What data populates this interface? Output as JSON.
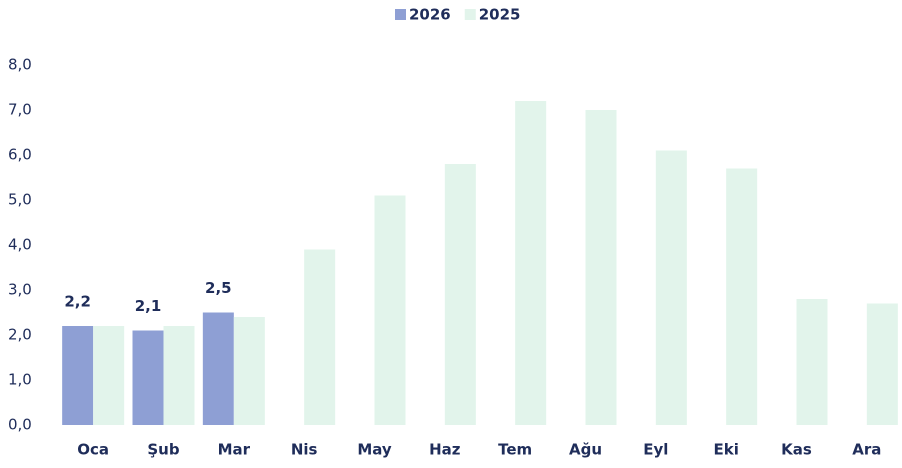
{
  "chart_data": {
    "type": "bar",
    "categories": [
      "Oca",
      "Şub",
      "Mar",
      "Nis",
      "May",
      "Haz",
      "Tem",
      "Ağu",
      "Eyl",
      "Eki",
      "Kas",
      "Ara"
    ],
    "series": [
      {
        "name": "2026",
        "color": "#8e9fd4",
        "values": [
          2.2,
          2.1,
          2.5,
          null,
          null,
          null,
          null,
          null,
          null,
          null,
          null,
          null
        ],
        "value_labels": [
          "2,2",
          "2,1",
          "2,5",
          null,
          null,
          null,
          null,
          null,
          null,
          null,
          null,
          null
        ]
      },
      {
        "name": "2025",
        "color": "#e2f4eb",
        "values": [
          2.2,
          2.2,
          2.4,
          3.9,
          5.1,
          5.8,
          7.2,
          7.0,
          6.1,
          5.7,
          2.8,
          2.7
        ]
      }
    ],
    "ylim": [
      0,
      8
    ],
    "yticks": [
      {
        "value": 0,
        "label": "0,0"
      },
      {
        "value": 1,
        "label": "1,0"
      },
      {
        "value": 2,
        "label": "2,0"
      },
      {
        "value": 3,
        "label": "3,0"
      },
      {
        "value": 4,
        "label": "4,0"
      },
      {
        "value": 5,
        "label": "5,0"
      },
      {
        "value": 6,
        "label": "6,0"
      },
      {
        "value": 7,
        "label": "7,0"
      },
      {
        "value": 8,
        "label": "8,0"
      }
    ],
    "legend": "top"
  }
}
